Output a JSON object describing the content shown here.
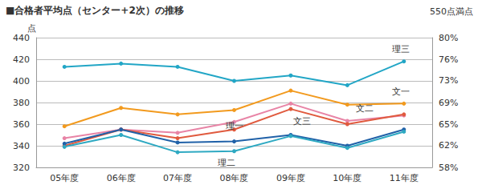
{
  "chart_data": {
    "type": "line",
    "title": "■合格者平均点（センター+2次）の推移",
    "subtitle": "550点満点",
    "y_label": "点",
    "categories": [
      "05年度",
      "06年度",
      "07年度",
      "08年度",
      "09年度",
      "10年度",
      "11年度"
    ],
    "series": [
      {
        "name": "理三",
        "color": "#22a6c6",
        "values": [
          413,
          416,
          413,
          400,
          405,
          396,
          418
        ]
      },
      {
        "name": "文一",
        "color": "#f29a1e",
        "values": [
          358,
          375,
          369,
          373,
          391,
          378,
          379
        ]
      },
      {
        "name": "文二",
        "color": "#e884a6",
        "values": [
          347,
          355,
          352,
          362,
          379,
          363,
          368
        ]
      },
      {
        "name": "文三",
        "color": "#e05a3e",
        "values": [
          340,
          355,
          347,
          355,
          374,
          360,
          369
        ]
      },
      {
        "name": "理一",
        "color": "#2061a8",
        "values": [
          342,
          355,
          343,
          344,
          350,
          340,
          355
        ]
      },
      {
        "name": "理二",
        "color": "#2ea9c2",
        "values": [
          339,
          350,
          334,
          335,
          349,
          338,
          353
        ]
      }
    ],
    "ylim": [
      320,
      440
    ],
    "yticks": [
      320,
      340,
      360,
      380,
      400,
      420,
      440
    ],
    "y2lim": [
      58.18,
      80
    ],
    "y2ticks": [
      {
        "value": 58.18,
        "label": "58%"
      },
      {
        "value": 61.82,
        "label": "62%"
      },
      {
        "value": 65.45,
        "label": "65%"
      },
      {
        "value": 69.09,
        "label": "69%"
      },
      {
        "value": 72.73,
        "label": "73%"
      },
      {
        "value": 76.36,
        "label": "76%"
      },
      {
        "value": 80,
        "label": "80%"
      }
    ],
    "grid": true,
    "marker": "circle"
  }
}
